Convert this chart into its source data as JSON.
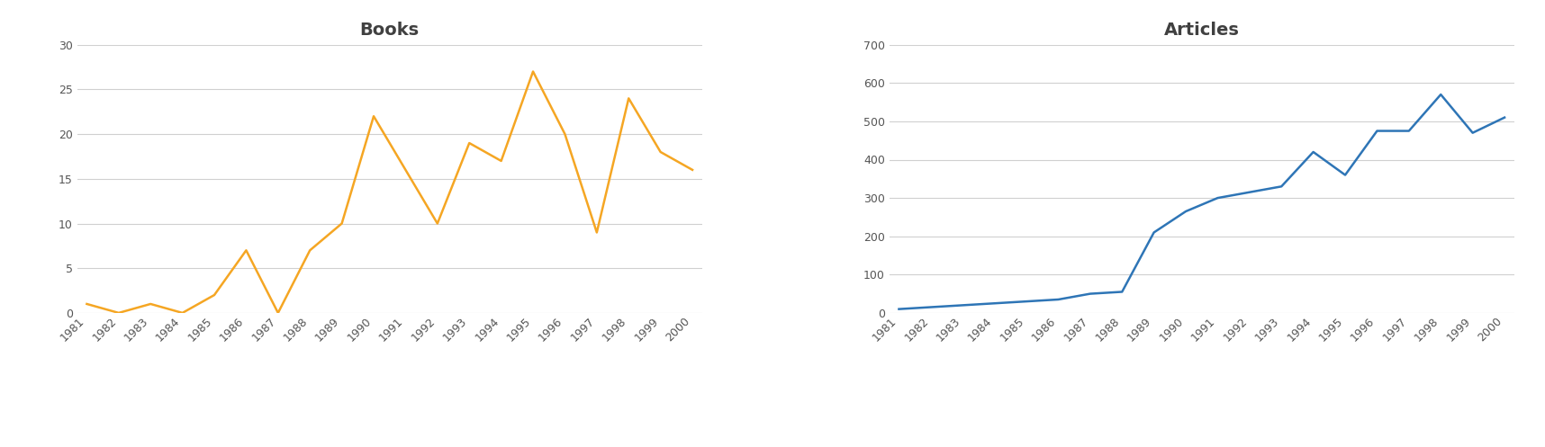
{
  "years": [
    1981,
    1982,
    1983,
    1984,
    1985,
    1986,
    1987,
    1988,
    1989,
    1990,
    1991,
    1992,
    1993,
    1994,
    1995,
    1996,
    1997,
    1998,
    1999,
    2000
  ],
  "books_values": [
    1,
    0,
    1,
    0,
    2,
    7,
    0,
    7,
    10,
    22,
    16,
    10,
    19,
    17,
    27,
    20,
    9,
    24,
    18,
    16
  ],
  "articles_values": [
    10,
    15,
    20,
    25,
    30,
    35,
    50,
    55,
    210,
    265,
    300,
    315,
    330,
    420,
    360,
    475,
    475,
    570,
    470,
    510
  ],
  "books_color": "#F5A623",
  "articles_color": "#2E75B6",
  "books_title": "Books",
  "articles_title": "Articles",
  "books_ylim": [
    0,
    30
  ],
  "books_yticks": [
    0,
    5,
    10,
    15,
    20,
    25,
    30
  ],
  "articles_ylim": [
    0,
    700
  ],
  "articles_yticks": [
    0,
    100,
    200,
    300,
    400,
    500,
    600,
    700
  ],
  "title_fontsize": 14,
  "tick_fontsize": 9,
  "line_width": 1.8,
  "background_color": "#ffffff",
  "grid_color": "#d0d0d0"
}
